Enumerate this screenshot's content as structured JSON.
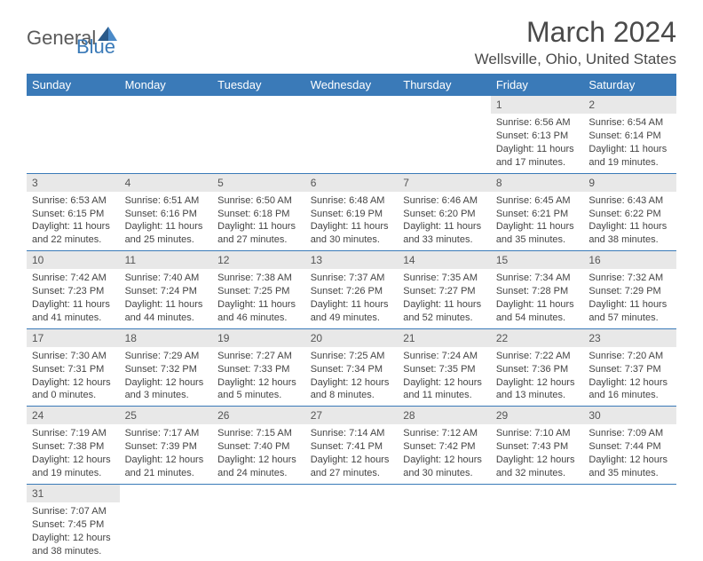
{
  "logo": {
    "general": "General",
    "blue": "Blue"
  },
  "header": {
    "month_title": "March 2024",
    "location": "Wellsville, Ohio, United States"
  },
  "colors": {
    "header_bg": "#3a7ab8",
    "header_text": "#ffffff",
    "daynum_bg": "#e8e8e8",
    "row_divider": "#3a7ab8",
    "body_text": "#444444"
  },
  "weekdays": [
    "Sunday",
    "Monday",
    "Tuesday",
    "Wednesday",
    "Thursday",
    "Friday",
    "Saturday"
  ],
  "weeks": [
    [
      null,
      null,
      null,
      null,
      null,
      {
        "n": "1",
        "sr": "Sunrise: 6:56 AM",
        "ss": "Sunset: 6:13 PM",
        "d1": "Daylight: 11 hours",
        "d2": "and 17 minutes."
      },
      {
        "n": "2",
        "sr": "Sunrise: 6:54 AM",
        "ss": "Sunset: 6:14 PM",
        "d1": "Daylight: 11 hours",
        "d2": "and 19 minutes."
      }
    ],
    [
      {
        "n": "3",
        "sr": "Sunrise: 6:53 AM",
        "ss": "Sunset: 6:15 PM",
        "d1": "Daylight: 11 hours",
        "d2": "and 22 minutes."
      },
      {
        "n": "4",
        "sr": "Sunrise: 6:51 AM",
        "ss": "Sunset: 6:16 PM",
        "d1": "Daylight: 11 hours",
        "d2": "and 25 minutes."
      },
      {
        "n": "5",
        "sr": "Sunrise: 6:50 AM",
        "ss": "Sunset: 6:18 PM",
        "d1": "Daylight: 11 hours",
        "d2": "and 27 minutes."
      },
      {
        "n": "6",
        "sr": "Sunrise: 6:48 AM",
        "ss": "Sunset: 6:19 PM",
        "d1": "Daylight: 11 hours",
        "d2": "and 30 minutes."
      },
      {
        "n": "7",
        "sr": "Sunrise: 6:46 AM",
        "ss": "Sunset: 6:20 PM",
        "d1": "Daylight: 11 hours",
        "d2": "and 33 minutes."
      },
      {
        "n": "8",
        "sr": "Sunrise: 6:45 AM",
        "ss": "Sunset: 6:21 PM",
        "d1": "Daylight: 11 hours",
        "d2": "and 35 minutes."
      },
      {
        "n": "9",
        "sr": "Sunrise: 6:43 AM",
        "ss": "Sunset: 6:22 PM",
        "d1": "Daylight: 11 hours",
        "d2": "and 38 minutes."
      }
    ],
    [
      {
        "n": "10",
        "sr": "Sunrise: 7:42 AM",
        "ss": "Sunset: 7:23 PM",
        "d1": "Daylight: 11 hours",
        "d2": "and 41 minutes."
      },
      {
        "n": "11",
        "sr": "Sunrise: 7:40 AM",
        "ss": "Sunset: 7:24 PM",
        "d1": "Daylight: 11 hours",
        "d2": "and 44 minutes."
      },
      {
        "n": "12",
        "sr": "Sunrise: 7:38 AM",
        "ss": "Sunset: 7:25 PM",
        "d1": "Daylight: 11 hours",
        "d2": "and 46 minutes."
      },
      {
        "n": "13",
        "sr": "Sunrise: 7:37 AM",
        "ss": "Sunset: 7:26 PM",
        "d1": "Daylight: 11 hours",
        "d2": "and 49 minutes."
      },
      {
        "n": "14",
        "sr": "Sunrise: 7:35 AM",
        "ss": "Sunset: 7:27 PM",
        "d1": "Daylight: 11 hours",
        "d2": "and 52 minutes."
      },
      {
        "n": "15",
        "sr": "Sunrise: 7:34 AM",
        "ss": "Sunset: 7:28 PM",
        "d1": "Daylight: 11 hours",
        "d2": "and 54 minutes."
      },
      {
        "n": "16",
        "sr": "Sunrise: 7:32 AM",
        "ss": "Sunset: 7:29 PM",
        "d1": "Daylight: 11 hours",
        "d2": "and 57 minutes."
      }
    ],
    [
      {
        "n": "17",
        "sr": "Sunrise: 7:30 AM",
        "ss": "Sunset: 7:31 PM",
        "d1": "Daylight: 12 hours",
        "d2": "and 0 minutes."
      },
      {
        "n": "18",
        "sr": "Sunrise: 7:29 AM",
        "ss": "Sunset: 7:32 PM",
        "d1": "Daylight: 12 hours",
        "d2": "and 3 minutes."
      },
      {
        "n": "19",
        "sr": "Sunrise: 7:27 AM",
        "ss": "Sunset: 7:33 PM",
        "d1": "Daylight: 12 hours",
        "d2": "and 5 minutes."
      },
      {
        "n": "20",
        "sr": "Sunrise: 7:25 AM",
        "ss": "Sunset: 7:34 PM",
        "d1": "Daylight: 12 hours",
        "d2": "and 8 minutes."
      },
      {
        "n": "21",
        "sr": "Sunrise: 7:24 AM",
        "ss": "Sunset: 7:35 PM",
        "d1": "Daylight: 12 hours",
        "d2": "and 11 minutes."
      },
      {
        "n": "22",
        "sr": "Sunrise: 7:22 AM",
        "ss": "Sunset: 7:36 PM",
        "d1": "Daylight: 12 hours",
        "d2": "and 13 minutes."
      },
      {
        "n": "23",
        "sr": "Sunrise: 7:20 AM",
        "ss": "Sunset: 7:37 PM",
        "d1": "Daylight: 12 hours",
        "d2": "and 16 minutes."
      }
    ],
    [
      {
        "n": "24",
        "sr": "Sunrise: 7:19 AM",
        "ss": "Sunset: 7:38 PM",
        "d1": "Daylight: 12 hours",
        "d2": "and 19 minutes."
      },
      {
        "n": "25",
        "sr": "Sunrise: 7:17 AM",
        "ss": "Sunset: 7:39 PM",
        "d1": "Daylight: 12 hours",
        "d2": "and 21 minutes."
      },
      {
        "n": "26",
        "sr": "Sunrise: 7:15 AM",
        "ss": "Sunset: 7:40 PM",
        "d1": "Daylight: 12 hours",
        "d2": "and 24 minutes."
      },
      {
        "n": "27",
        "sr": "Sunrise: 7:14 AM",
        "ss": "Sunset: 7:41 PM",
        "d1": "Daylight: 12 hours",
        "d2": "and 27 minutes."
      },
      {
        "n": "28",
        "sr": "Sunrise: 7:12 AM",
        "ss": "Sunset: 7:42 PM",
        "d1": "Daylight: 12 hours",
        "d2": "and 30 minutes."
      },
      {
        "n": "29",
        "sr": "Sunrise: 7:10 AM",
        "ss": "Sunset: 7:43 PM",
        "d1": "Daylight: 12 hours",
        "d2": "and 32 minutes."
      },
      {
        "n": "30",
        "sr": "Sunrise: 7:09 AM",
        "ss": "Sunset: 7:44 PM",
        "d1": "Daylight: 12 hours",
        "d2": "and 35 minutes."
      }
    ],
    [
      {
        "n": "31",
        "sr": "Sunrise: 7:07 AM",
        "ss": "Sunset: 7:45 PM",
        "d1": "Daylight: 12 hours",
        "d2": "and 38 minutes."
      },
      null,
      null,
      null,
      null,
      null,
      null
    ]
  ]
}
